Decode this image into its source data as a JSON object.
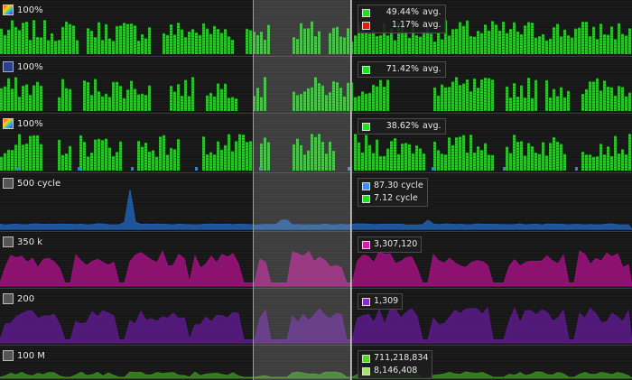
{
  "selection": {
    "start_fraction": 0.4,
    "end_fraction": 0.554
  },
  "lanes": [
    {
      "kind": "bars",
      "header": "100%",
      "icon": "rainbow-icon",
      "color": "#2ecc2e",
      "readout": [
        {
          "value": "49.44%",
          "suffix": "avg.",
          "color": "#22dd22"
        },
        {
          "value": "1.17%",
          "suffix": "avg.",
          "color": "#dd1c1c"
        }
      ]
    },
    {
      "kind": "bars",
      "header": "100%",
      "icon": "blue-square-icon",
      "color": "#2ecc2e",
      "readout": [
        {
          "value": "71.42%",
          "suffix": "avg.",
          "color": "#22dd22"
        }
      ]
    },
    {
      "kind": "bars",
      "header": "100%",
      "icon": "rainbow-icon",
      "color": "#2ecc2e",
      "readout": [
        {
          "value": "38.62%",
          "suffix": "avg.",
          "color": "#22dd22"
        }
      ]
    },
    {
      "kind": "area",
      "header": "500 cycle",
      "icon": "gray-square-icon",
      "color": "#1f5fb0",
      "readout": [
        {
          "value": "87.30 cycle",
          "suffix": "",
          "color": "#3b8cff"
        },
        {
          "value": "7.12 cycle",
          "suffix": "",
          "color": "#22dd22"
        }
      ]
    },
    {
      "kind": "area",
      "header": "350 k",
      "icon": "gray-square-icon",
      "color": "#a0107f",
      "readout": [
        {
          "value": "3,307,120",
          "suffix": "",
          "color": "#d020b0"
        }
      ]
    },
    {
      "kind": "area",
      "header": "200",
      "icon": "gray-square-icon",
      "color": "#5a1a8a",
      "readout": [
        {
          "value": "1,309",
          "suffix": "",
          "color": "#8a2ad0"
        }
      ]
    },
    {
      "kind": "area",
      "header": "100 M",
      "icon": "gray-square-icon",
      "color": "#3a8a22",
      "readout": [
        {
          "value": "711,218,834",
          "suffix": "",
          "color": "#5cd02a"
        },
        {
          "value": "8,146,408",
          "suffix": "",
          "color": "#a8e070"
        }
      ]
    }
  ]
}
